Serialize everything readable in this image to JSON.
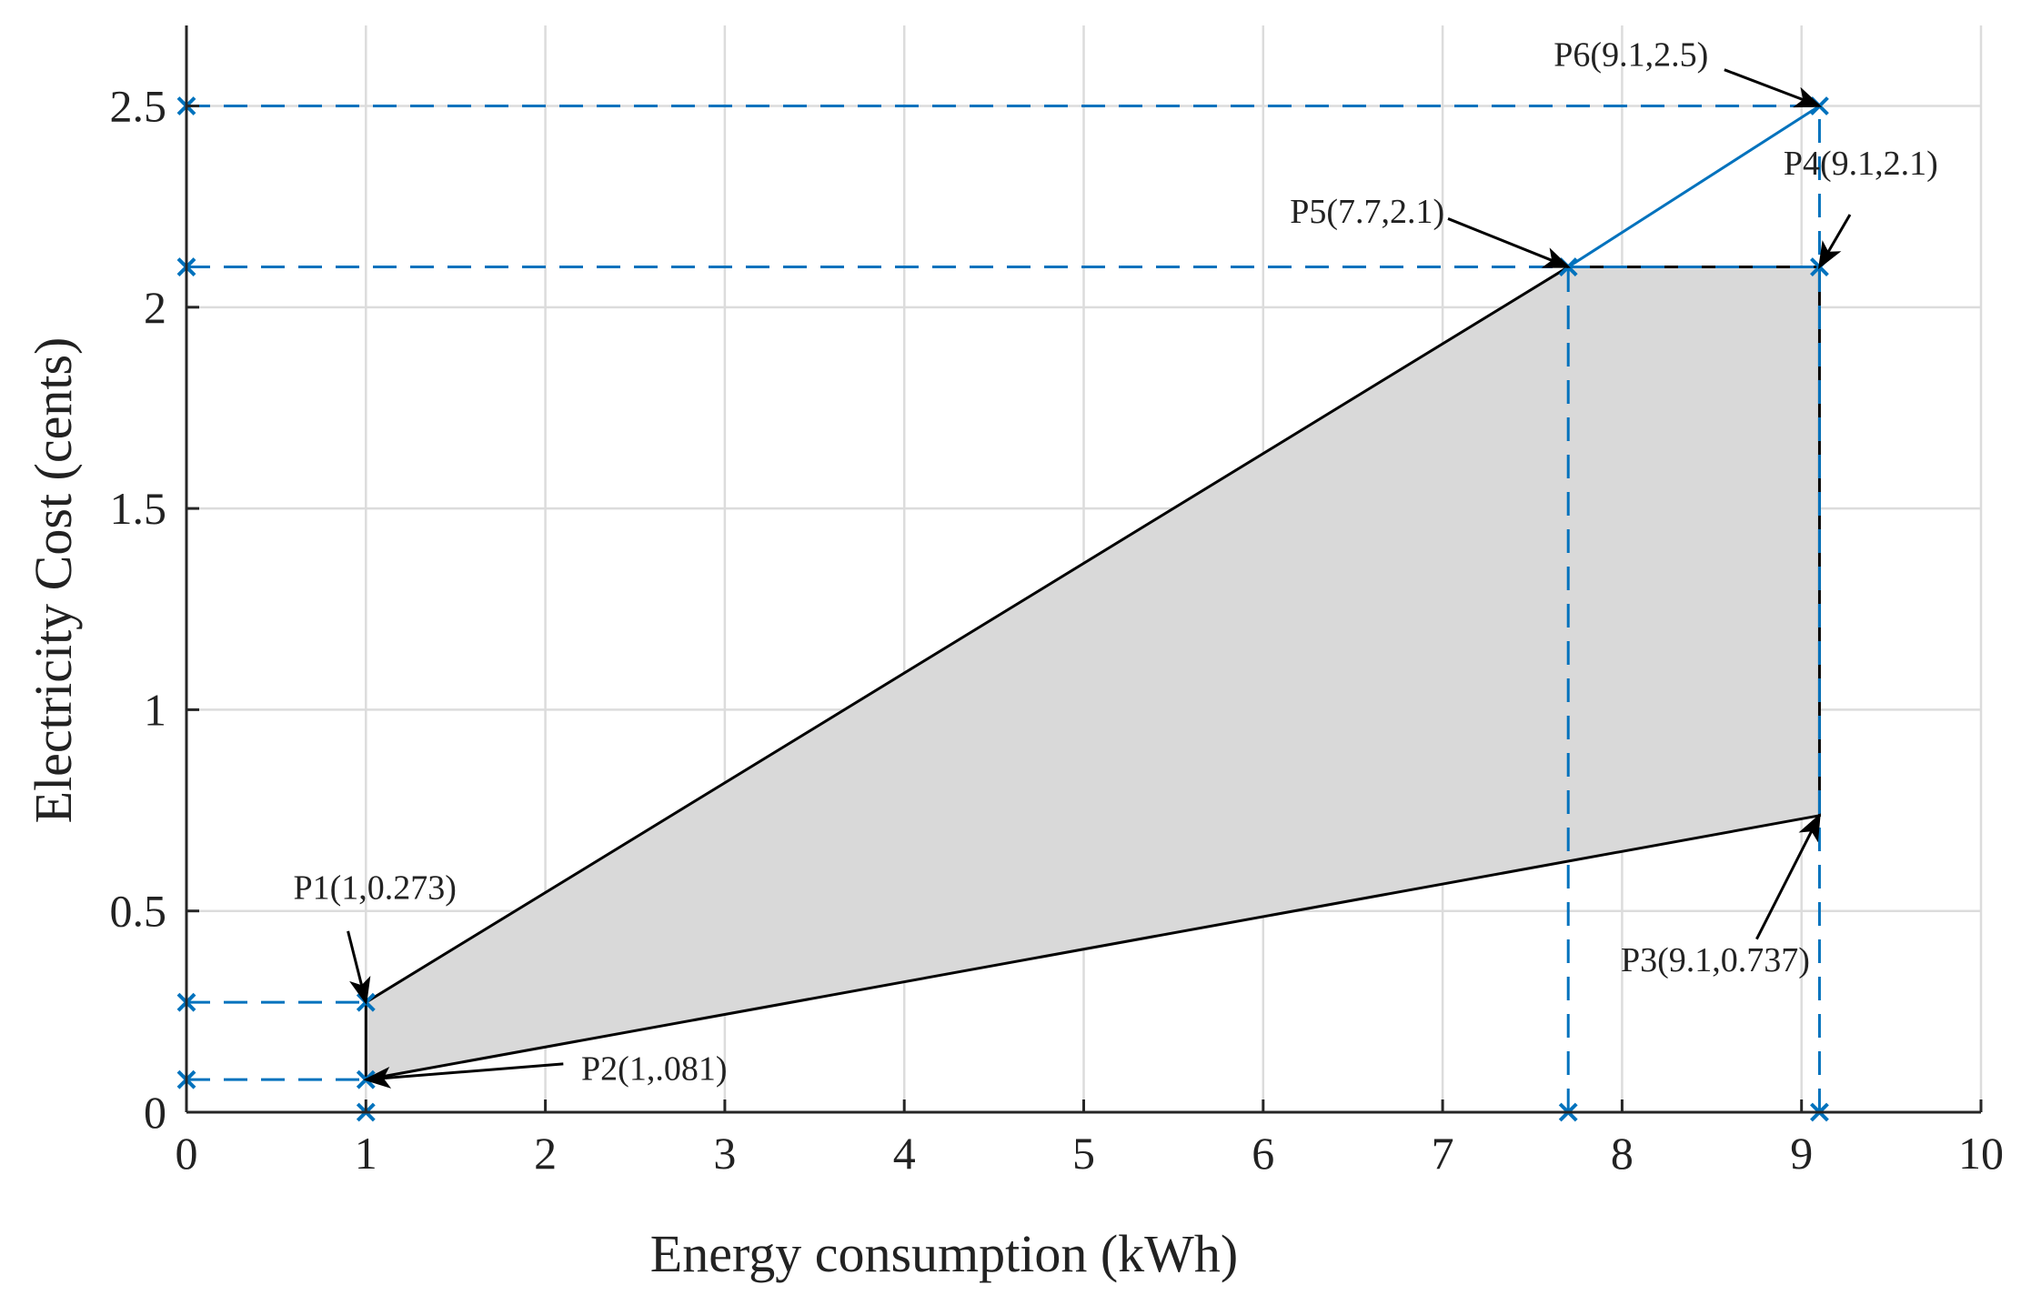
{
  "chart_data": {
    "type": "area",
    "title": "",
    "xlabel": "Energy consumption (kWh)",
    "ylabel": "Electricity Cost (cents)",
    "xlim": [
      0,
      10
    ],
    "ylim": [
      0,
      2.7
    ],
    "xticks": [
      0,
      1,
      2,
      3,
      4,
      5,
      6,
      7,
      8,
      9,
      10
    ],
    "yticks": [
      0,
      0.5,
      1,
      1.5,
      2,
      2.5
    ],
    "xtick_labels": [
      "0",
      "1",
      "2",
      "3",
      "4",
      "5",
      "6",
      "7",
      "8",
      "9",
      "10"
    ],
    "ytick_labels": [
      "0",
      "0.5",
      "1",
      "1.5",
      "2",
      "2.5"
    ],
    "grid": true,
    "colors": {
      "region_fill": "#d9d9d9",
      "boundary": "#000000",
      "guide": "#0072bd",
      "grid": "#dcdcdc",
      "axis": "#262626"
    },
    "feasible_region": [
      [
        1,
        0.273
      ],
      [
        7.7,
        2.1
      ],
      [
        9.1,
        2.1
      ],
      [
        9.1,
        0.737
      ],
      [
        1,
        0.081
      ]
    ],
    "top_segment": [
      [
        7.7,
        2.1
      ],
      [
        9.1,
        2.5
      ]
    ],
    "points": [
      {
        "name": "P1",
        "label": "P1(1,0.273)",
        "x": 1,
        "y": 0.273
      },
      {
        "name": "P2",
        "label": "P2(1,.081)",
        "x": 1,
        "y": 0.081
      },
      {
        "name": "P3",
        "label": "P3(9.1,0.737)",
        "x": 9.1,
        "y": 0.737
      },
      {
        "name": "P4",
        "label": "P4(9.1,2.1)",
        "x": 9.1,
        "y": 2.1
      },
      {
        "name": "P5",
        "label": "P5(7.7,2.1)",
        "x": 7.7,
        "y": 2.1
      },
      {
        "name": "P6",
        "label": "P6(9.1,2.5)",
        "x": 9.1,
        "y": 2.5
      }
    ],
    "guide_lines": [
      {
        "from": [
          0,
          0.081
        ],
        "to": [
          1,
          0.081
        ]
      },
      {
        "from": [
          0,
          0.273
        ],
        "to": [
          1,
          0.273
        ]
      },
      {
        "from": [
          0,
          2.1
        ],
        "to": [
          9.1,
          2.1
        ]
      },
      {
        "from": [
          0,
          2.5
        ],
        "to": [
          9.1,
          2.5
        ]
      },
      {
        "from": [
          7.7,
          0
        ],
        "to": [
          7.7,
          2.1
        ]
      },
      {
        "from": [
          9.1,
          0
        ],
        "to": [
          9.1,
          2.5
        ]
      }
    ],
    "markers": [
      [
        0,
        0.081
      ],
      [
        0,
        0.273
      ],
      [
        0,
        2.1
      ],
      [
        0,
        2.5
      ],
      [
        1,
        0
      ],
      [
        1,
        0.081
      ],
      [
        1,
        0.273
      ],
      [
        7.7,
        0
      ],
      [
        7.7,
        2.1
      ],
      [
        9.1,
        0
      ],
      [
        9.1,
        2.1
      ],
      [
        9.1,
        2.5
      ]
    ],
    "annotations": [
      {
        "point": "P1",
        "text": "P1(1,0.273)",
        "text_at": [
          1.05,
          0.53
        ],
        "text_anchor": "middle",
        "arrow_from": [
          0.9,
          0.45
        ]
      },
      {
        "point": "P2",
        "text": "P2(1,.081)",
        "text_at": [
          2.2,
          0.08
        ],
        "text_anchor": "start",
        "arrow_from": [
          2.1,
          0.12
        ]
      },
      {
        "point": "P3",
        "text": "P3(9.1,0.737)",
        "text_at": [
          8.52,
          0.35
        ],
        "text_anchor": "middle",
        "arrow_from": [
          8.75,
          0.43
        ]
      },
      {
        "point": "P4",
        "text": "P4(9.1,2.1)",
        "text_at": [
          9.33,
          2.33
        ],
        "text_anchor": "middle",
        "arrow_from": [
          9.27,
          2.23
        ]
      },
      {
        "point": "P5",
        "text": "P5(7.7,2.1)",
        "text_at": [
          6.58,
          2.21
        ],
        "text_anchor": "middle",
        "arrow_from": [
          7.03,
          2.22
        ]
      },
      {
        "point": "P6",
        "text": "P6(9.1,2.5)",
        "text_at": [
          8.05,
          2.6
        ],
        "text_anchor": "middle",
        "arrow_from": [
          8.57,
          2.59
        ]
      }
    ]
  }
}
